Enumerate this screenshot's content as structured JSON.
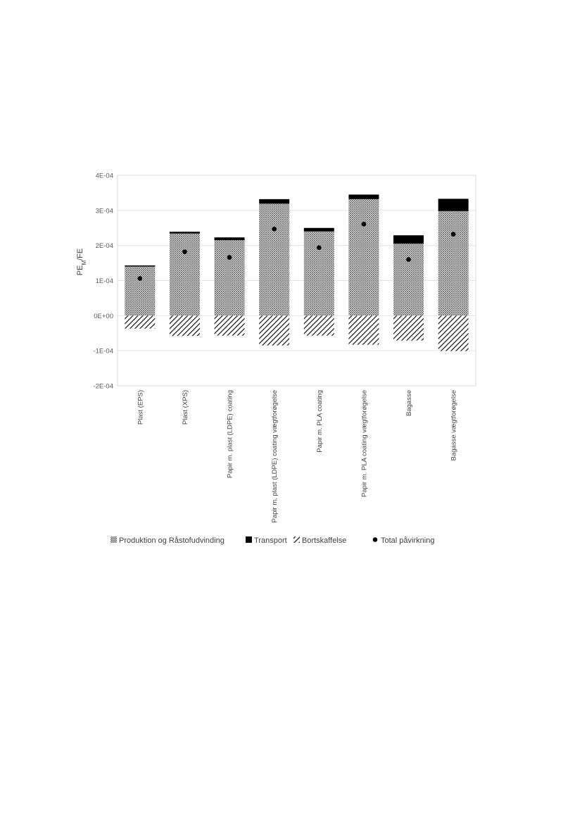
{
  "chart_data": {
    "type": "bar",
    "stacked": true,
    "ylabel": {
      "main": "PE",
      "sub": "M",
      "suffix": "/FE"
    },
    "ylim": [
      -0.0002,
      0.0004
    ],
    "yticks": [
      {
        "value": 0.0004,
        "label": "4E-04"
      },
      {
        "value": 0.0003,
        "label": "3E-04"
      },
      {
        "value": 0.0002,
        "label": "2E-04"
      },
      {
        "value": 0.0001,
        "label": "1E-04"
      },
      {
        "value": 0,
        "label": "0E+00"
      },
      {
        "value": -0.0001,
        "label": "-1E-04"
      },
      {
        "value": -0.0002,
        "label": "-2E-04"
      }
    ],
    "grid": true,
    "legend_position": "bottom",
    "categories": [
      "Plast (EPS)",
      "Plast (XPS)",
      "Papir m. plast (LDPE) coating",
      "Papir m. plast (LDPE) coating vægtforøgelse",
      "Papir m. PLA coating",
      "Papir m. PLA coating vægtforøgelse",
      "Bagasse",
      "Bagasse vægtforøgelse"
    ],
    "series": [
      {
        "name": "Produktion og Råstofudvinding",
        "kind": "bar",
        "pattern": "crosshatch",
        "values": [
          0.00014,
          0.000234,
          0.000215,
          0.000319,
          0.00024,
          0.000332,
          0.000205,
          0.000298
        ]
      },
      {
        "name": "Transport",
        "kind": "bar",
        "pattern": "solid",
        "values": [
          3e-06,
          5e-06,
          8e-06,
          1.3e-05,
          1e-05,
          1.3e-05,
          2.4e-05,
          3.5e-05
        ]
      },
      {
        "name": "Bortskaffelse",
        "kind": "bar",
        "pattern": "diagonal",
        "values": [
          -3.7e-05,
          -5.8e-05,
          -5.7e-05,
          -8.5e-05,
          -5.7e-05,
          -8.3e-05,
          -7.1e-05,
          -0.000101
        ]
      },
      {
        "name": "Total påvirkning",
        "kind": "point",
        "values": [
          0.000106,
          0.000182,
          0.000166,
          0.000247,
          0.000194,
          0.000261,
          0.00016,
          0.000232
        ]
      }
    ]
  }
}
